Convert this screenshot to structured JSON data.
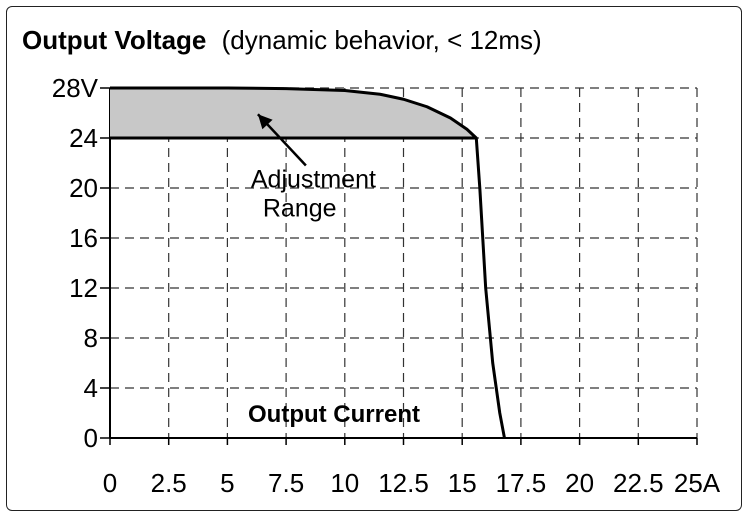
{
  "chart_data": {
    "type": "line",
    "title": "Output Voltage",
    "subtitle": "(dynamic behavior, < 12ms)",
    "xlabel": "Output Current",
    "ylabel": "",
    "x_ticks": [
      "0",
      "2.5",
      "5",
      "7.5",
      "10",
      "12.5",
      "15",
      "17.5",
      "20",
      "22.5",
      "25A"
    ],
    "y_ticks": [
      "0",
      "4",
      "8",
      "12",
      "16",
      "20",
      "24",
      "28V"
    ],
    "xlim": [
      0,
      25
    ],
    "ylim": [
      0,
      28
    ],
    "grid": true,
    "grid_style": "dashed",
    "series": [
      {
        "type": "line",
        "x": [
          0,
          5,
          7.5,
          10,
          11.5,
          12.5,
          13.5,
          14.5,
          15.2,
          15.6,
          15.75,
          16.0,
          16.3,
          16.6,
          16.8
        ],
        "y": [
          28,
          28,
          27.95,
          27.8,
          27.5,
          27.1,
          26.5,
          25.6,
          24.7,
          24.0,
          20,
          12,
          6,
          2,
          0
        ],
        "color": "#000000"
      },
      {
        "type": "line",
        "x": [
          0,
          15.6
        ],
        "y": [
          24,
          24
        ],
        "color": "#000000"
      }
    ],
    "shaded_region": {
      "upper_x": [
        0,
        5,
        7.5,
        10,
        11.5,
        12.5,
        13.5,
        14.5,
        15.2,
        15.6
      ],
      "upper_y": [
        28,
        28,
        27.95,
        27.8,
        27.5,
        27.1,
        26.5,
        25.6,
        24.7,
        24.0
      ],
      "lower_y": 24,
      "color": "#c8c8c8"
    },
    "annotations": [
      {
        "text_lines": [
          "Adjustment",
          "Range"
        ],
        "x": 6,
        "y": 20.2,
        "arrow_to": [
          6.3,
          25.9
        ]
      }
    ]
  }
}
